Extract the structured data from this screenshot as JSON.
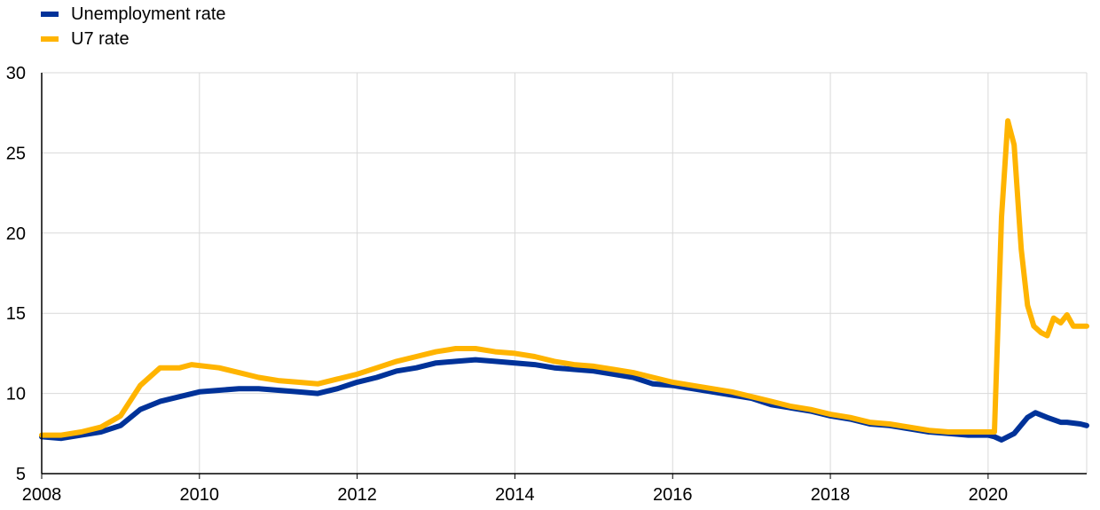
{
  "colors": {
    "unemployment": "#003299",
    "u7": "#FFB400",
    "grid": "#d9d9d9",
    "axis": "#000000"
  },
  "chart_data": {
    "type": "line",
    "title": "",
    "xlabel": "",
    "ylabel": "",
    "legend_position": "top-left",
    "grid": "horizontal and vertical",
    "xlim": [
      2008.0,
      2021.25
    ],
    "ylim": [
      5,
      30
    ],
    "x_ticks": [
      "2008",
      "2010",
      "2012",
      "2014",
      "2016",
      "2018",
      "2020"
    ],
    "y_ticks": [
      "5",
      "10",
      "15",
      "20",
      "25",
      "30"
    ],
    "series": [
      {
        "name": "Unemployment rate",
        "color": "#003299",
        "points": [
          [
            2008.0,
            7.3
          ],
          [
            2008.25,
            7.2
          ],
          [
            2008.5,
            7.4
          ],
          [
            2008.75,
            7.6
          ],
          [
            2009.0,
            8.0
          ],
          [
            2009.25,
            9.0
          ],
          [
            2009.5,
            9.5
          ],
          [
            2009.75,
            9.8
          ],
          [
            2010.0,
            10.1
          ],
          [
            2010.25,
            10.2
          ],
          [
            2010.5,
            10.3
          ],
          [
            2010.75,
            10.3
          ],
          [
            2011.0,
            10.2
          ],
          [
            2011.25,
            10.1
          ],
          [
            2011.5,
            10.0
          ],
          [
            2011.75,
            10.3
          ],
          [
            2012.0,
            10.7
          ],
          [
            2012.25,
            11.0
          ],
          [
            2012.5,
            11.4
          ],
          [
            2012.75,
            11.6
          ],
          [
            2013.0,
            11.9
          ],
          [
            2013.25,
            12.0
          ],
          [
            2013.5,
            12.1
          ],
          [
            2013.75,
            12.0
          ],
          [
            2014.0,
            11.9
          ],
          [
            2014.25,
            11.8
          ],
          [
            2014.5,
            11.6
          ],
          [
            2014.75,
            11.5
          ],
          [
            2015.0,
            11.4
          ],
          [
            2015.25,
            11.2
          ],
          [
            2015.5,
            11.0
          ],
          [
            2015.75,
            10.6
          ],
          [
            2016.0,
            10.5
          ],
          [
            2016.25,
            10.3
          ],
          [
            2016.5,
            10.1
          ],
          [
            2016.75,
            9.9
          ],
          [
            2017.0,
            9.7
          ],
          [
            2017.25,
            9.3
          ],
          [
            2017.5,
            9.1
          ],
          [
            2017.75,
            8.9
          ],
          [
            2018.0,
            8.6
          ],
          [
            2018.25,
            8.4
          ],
          [
            2018.5,
            8.1
          ],
          [
            2018.75,
            8.0
          ],
          [
            2019.0,
            7.8
          ],
          [
            2019.25,
            7.6
          ],
          [
            2019.5,
            7.5
          ],
          [
            2019.75,
            7.4
          ],
          [
            2020.0,
            7.4
          ],
          [
            2020.08,
            7.3
          ],
          [
            2020.17,
            7.1
          ],
          [
            2020.33,
            7.5
          ],
          [
            2020.5,
            8.5
          ],
          [
            2020.6,
            8.8
          ],
          [
            2020.75,
            8.5
          ],
          [
            2020.92,
            8.2
          ],
          [
            2021.0,
            8.2
          ],
          [
            2021.17,
            8.1
          ],
          [
            2021.25,
            8.0
          ]
        ]
      },
      {
        "name": "U7 rate",
        "color": "#FFB400",
        "points": [
          [
            2008.0,
            7.4
          ],
          [
            2008.25,
            7.4
          ],
          [
            2008.5,
            7.6
          ],
          [
            2008.75,
            7.9
          ],
          [
            2009.0,
            8.6
          ],
          [
            2009.25,
            10.5
          ],
          [
            2009.5,
            11.6
          ],
          [
            2009.75,
            11.6
          ],
          [
            2009.9,
            11.8
          ],
          [
            2010.25,
            11.6
          ],
          [
            2010.5,
            11.3
          ],
          [
            2010.75,
            11.0
          ],
          [
            2011.0,
            10.8
          ],
          [
            2011.25,
            10.7
          ],
          [
            2011.5,
            10.6
          ],
          [
            2011.75,
            10.9
          ],
          [
            2012.0,
            11.2
          ],
          [
            2012.25,
            11.6
          ],
          [
            2012.5,
            12.0
          ],
          [
            2012.75,
            12.3
          ],
          [
            2013.0,
            12.6
          ],
          [
            2013.25,
            12.8
          ],
          [
            2013.5,
            12.8
          ],
          [
            2013.75,
            12.6
          ],
          [
            2014.0,
            12.5
          ],
          [
            2014.25,
            12.3
          ],
          [
            2014.5,
            12.0
          ],
          [
            2014.75,
            11.8
          ],
          [
            2015.0,
            11.7
          ],
          [
            2015.25,
            11.5
          ],
          [
            2015.5,
            11.3
          ],
          [
            2015.75,
            11.0
          ],
          [
            2016.0,
            10.7
          ],
          [
            2016.25,
            10.5
          ],
          [
            2016.5,
            10.3
          ],
          [
            2016.75,
            10.1
          ],
          [
            2017.0,
            9.8
          ],
          [
            2017.25,
            9.5
          ],
          [
            2017.5,
            9.2
          ],
          [
            2017.75,
            9.0
          ],
          [
            2018.0,
            8.7
          ],
          [
            2018.25,
            8.5
          ],
          [
            2018.5,
            8.2
          ],
          [
            2018.75,
            8.1
          ],
          [
            2019.0,
            7.9
          ],
          [
            2019.25,
            7.7
          ],
          [
            2019.5,
            7.6
          ],
          [
            2019.75,
            7.6
          ],
          [
            2020.0,
            7.6
          ],
          [
            2020.08,
            7.6
          ],
          [
            2020.17,
            21.0
          ],
          [
            2020.25,
            27.0
          ],
          [
            2020.33,
            25.5
          ],
          [
            2020.42,
            19.0
          ],
          [
            2020.5,
            15.5
          ],
          [
            2020.58,
            14.2
          ],
          [
            2020.67,
            13.8
          ],
          [
            2020.75,
            13.6
          ],
          [
            2020.83,
            14.7
          ],
          [
            2020.92,
            14.4
          ],
          [
            2021.0,
            14.9
          ],
          [
            2021.08,
            14.2
          ],
          [
            2021.25,
            14.2
          ]
        ]
      }
    ]
  }
}
